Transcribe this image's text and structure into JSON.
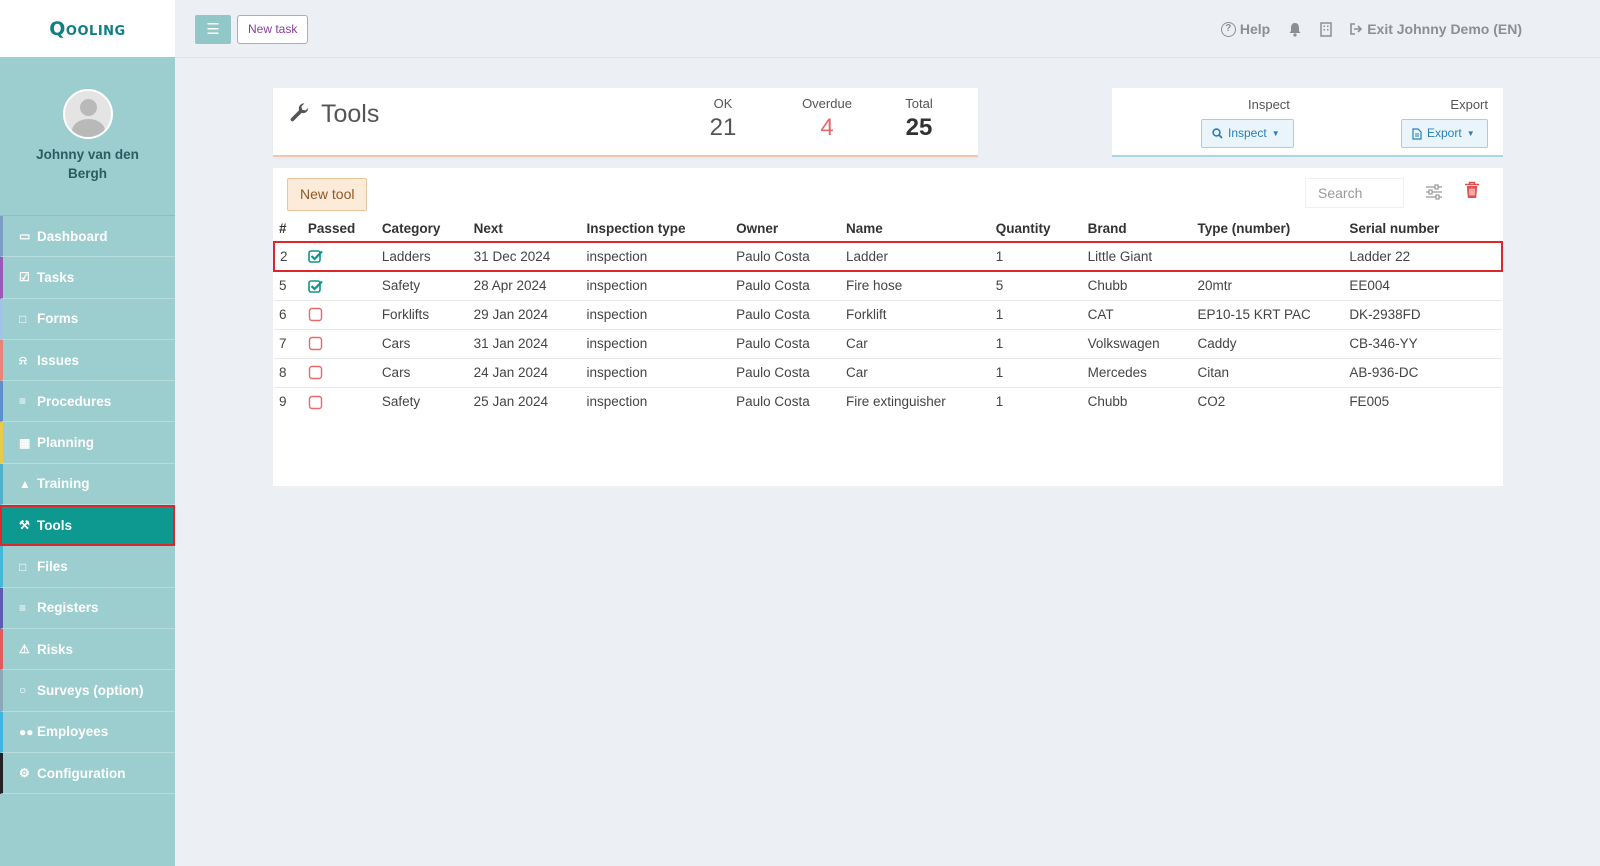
{
  "brand": {
    "logo_text": "Qooling",
    "accent": "#0d9990",
    "sidebar_bg": "#9ccecf"
  },
  "user": {
    "name": "Johnny van den Bergh"
  },
  "nav": [
    {
      "label": "Dashboard",
      "icon": "monitor-icon",
      "color": "#7b9ec6"
    },
    {
      "label": "Tasks",
      "icon": "check-square-icon",
      "color": "#9b59b6"
    },
    {
      "label": "Forms",
      "icon": "file-icon",
      "color": "#a0c4e4"
    },
    {
      "label": "Issues",
      "icon": "bell-icon",
      "color": "#e9827a"
    },
    {
      "label": "Procedures",
      "icon": "list-icon",
      "color": "#5d8fcc"
    },
    {
      "label": "Planning",
      "icon": "calendar-icon",
      "color": "#e8c94a"
    },
    {
      "label": "Training",
      "icon": "graduation-cap-icon",
      "color": "#4fb0c8"
    },
    {
      "label": "Tools",
      "icon": "wrench-icon",
      "color": "#0d9990"
    },
    {
      "label": "Files",
      "icon": "file-pdf-icon",
      "color": "#44b8d8"
    },
    {
      "label": "Registers",
      "icon": "list-icon",
      "color": "#5b5bb0"
    },
    {
      "label": "Risks",
      "icon": "warning-icon",
      "color": "#e05c5c"
    },
    {
      "label": "Surveys (option)",
      "icon": "comment-icon",
      "color": "#8aa8b8"
    },
    {
      "label": "Employees",
      "icon": "users-icon",
      "color": "#3fb4e0"
    },
    {
      "label": "Configuration",
      "icon": "gear-icon",
      "color": "#222222"
    }
  ],
  "active_nav": "Tools",
  "topbar": {
    "new_task_label": "New task",
    "help_label": "Help",
    "exit_label": "Exit Johnny Demo (EN)"
  },
  "stats": {
    "title": "Tools",
    "ok_label": "OK",
    "ok_value": "21",
    "overdue_label": "Overdue",
    "overdue_value": "4",
    "total_label": "Total",
    "total_value": "25"
  },
  "actions": {
    "inspect_label": "Inspect",
    "inspect_button": "Inspect",
    "export_label": "Export",
    "export_button": "Export"
  },
  "tools": {
    "new_tool_label": "New tool",
    "search_placeholder": "Search",
    "columns": [
      "#",
      "Passed",
      "Category",
      "Next",
      "Inspection type",
      "Owner",
      "Name",
      "Quantity",
      "Brand",
      "Type (number)",
      "Serial number"
    ],
    "rows": [
      {
        "num": "2",
        "passed": true,
        "category": "Ladders",
        "next": "31 Dec 2024",
        "overdue": false,
        "inspection_type": "inspection",
        "owner": "Paulo Costa",
        "name": "Ladder",
        "quantity": "1",
        "brand": "Little Giant",
        "type_number": "",
        "serial": "Ladder 22"
      },
      {
        "num": "5",
        "passed": true,
        "category": "Safety",
        "next": "28 Apr 2024",
        "overdue": false,
        "inspection_type": "inspection",
        "owner": "Paulo Costa",
        "name": "Fire hose",
        "quantity": "5",
        "brand": "Chubb",
        "type_number": "20mtr",
        "serial": "EE004"
      },
      {
        "num": "6",
        "passed": false,
        "category": "Forklifts",
        "next": "29 Jan 2024",
        "overdue": true,
        "inspection_type": "inspection",
        "owner": "Paulo Costa",
        "name": "Forklift",
        "quantity": "1",
        "brand": "CAT",
        "type_number": "EP10-15 KRT PAC",
        "serial": "DK-2938FD"
      },
      {
        "num": "7",
        "passed": false,
        "category": "Cars",
        "next": "31 Jan 2024",
        "overdue": true,
        "inspection_type": "inspection",
        "owner": "Paulo Costa",
        "name": "Car",
        "quantity": "1",
        "brand": "Volkswagen",
        "type_number": "Caddy",
        "serial": "CB-346-YY"
      },
      {
        "num": "8",
        "passed": false,
        "category": "Cars",
        "next": "24 Jan 2024",
        "overdue": true,
        "inspection_type": "inspection",
        "owner": "Paulo Costa",
        "name": "Car",
        "quantity": "1",
        "brand": "Mercedes",
        "type_number": "Citan",
        "serial": "AB-936-DC"
      },
      {
        "num": "9",
        "passed": false,
        "category": "Safety",
        "next": "25 Jan 2024",
        "overdue": true,
        "inspection_type": "inspection",
        "owner": "Paulo Costa",
        "name": "Fire extinguisher",
        "quantity": "1",
        "brand": "Chubb",
        "type_number": "CO2",
        "serial": "FE005"
      }
    ]
  }
}
